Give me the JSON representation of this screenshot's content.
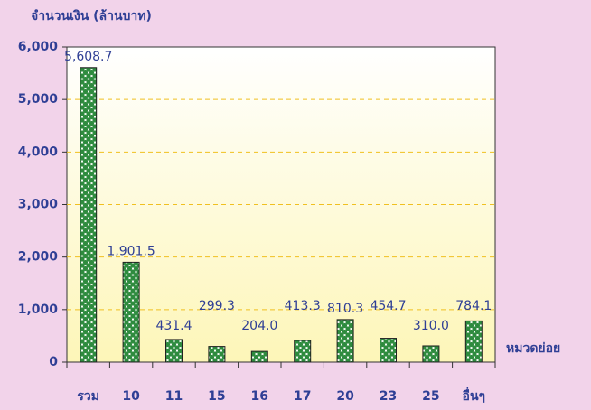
{
  "chart_data": {
    "type": "bar",
    "y_axis_label": "จำนวนเงิน (ล้านบาท)",
    "x_axis_label": "หมวดย่อย",
    "categories": [
      "รวม",
      "10",
      "11",
      "15",
      "16",
      "17",
      "20",
      "23",
      "25",
      "อื่นๆ"
    ],
    "values": [
      5608.7,
      1901.5,
      431.4,
      299.3,
      204.0,
      413.3,
      810.3,
      454.7,
      310.0,
      784.1
    ],
    "value_labels": [
      "5,608.7",
      "1,901.5",
      "431.4",
      "299.3",
      "204.0",
      "413.3",
      "810.3",
      "454.7",
      "310.0",
      "784.1"
    ],
    "color": "#2e8b3e",
    "ylim": [
      0,
      6000
    ],
    "yticks": [
      0,
      {
        "value": 1000,
        "label": "1,000"
      },
      {
        "value": 2000,
        "label": "2,000"
      },
      {
        "value": 3000,
        "label": "3,000"
      },
      {
        "value": 4000,
        "label": "4,000"
      },
      {
        "value": 5000,
        "label": "5,000"
      },
      {
        "value": 6000,
        "label": "6,000"
      }
    ],
    "grid": true
  }
}
